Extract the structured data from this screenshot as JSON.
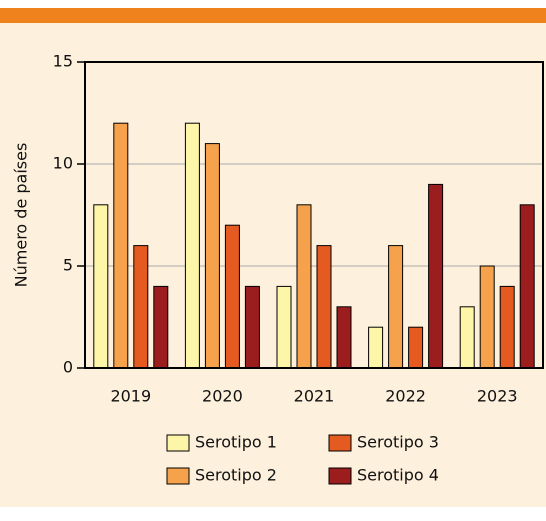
{
  "chart_data": {
    "type": "bar",
    "ylabel": "Número de países",
    "categories": [
      "2019",
      "2020",
      "2021",
      "2022",
      "2023"
    ],
    "series": [
      {
        "name": "Serotipo 1",
        "color": "#fdf6a8",
        "values": [
          8,
          12,
          4,
          2,
          3
        ]
      },
      {
        "name": "Serotipo 2",
        "color": "#f6a24c",
        "values": [
          12,
          11,
          8,
          6,
          5
        ]
      },
      {
        "name": "Serotipo 3",
        "color": "#e55a20",
        "values": [
          6,
          7,
          6,
          2,
          4
        ]
      },
      {
        "name": "Serotipo 4",
        "color": "#9c1d1d",
        "values": [
          4,
          4,
          3,
          9,
          8
        ]
      }
    ],
    "ylim": [
      0,
      15
    ],
    "yticks": [
      0,
      5,
      10,
      15
    ],
    "grid": true
  }
}
